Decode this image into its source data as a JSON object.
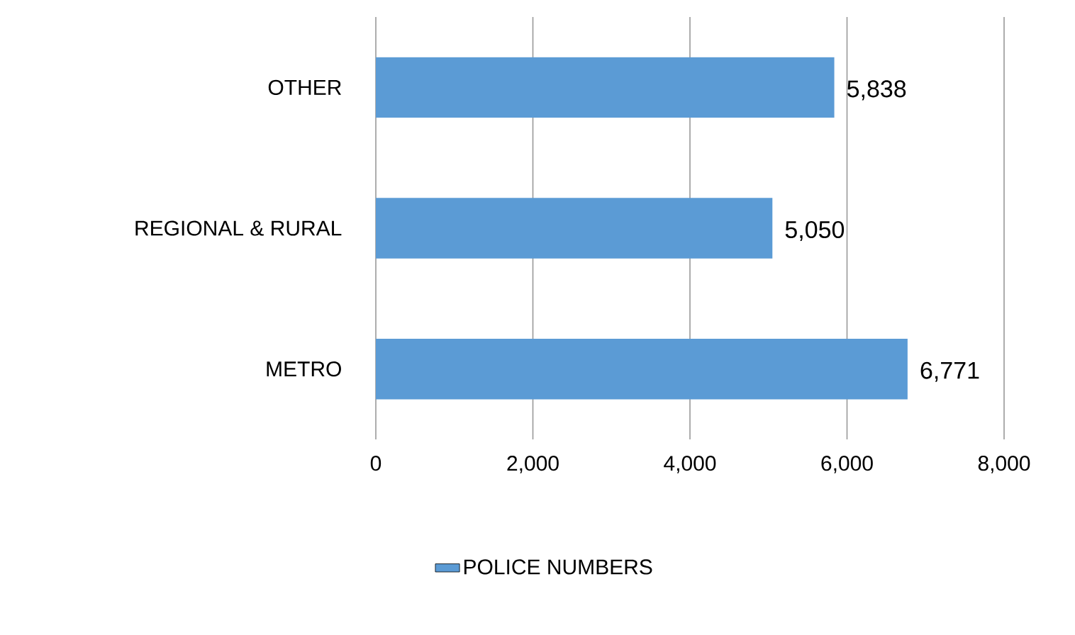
{
  "chart_data": {
    "type": "bar",
    "orientation": "horizontal",
    "categories": [
      "OTHER",
      "REGIONAL & RURAL",
      "METRO"
    ],
    "series": [
      {
        "name": "POLICE NUMBERS",
        "color": "#5b9bd5",
        "values": [
          5838,
          5050,
          6771
        ],
        "value_labels": [
          "5,838",
          "5,050",
          "6,771"
        ]
      }
    ],
    "xlim": [
      0,
      8000
    ],
    "xticks": [
      0,
      {
        "value": 2000,
        "label": "2,000"
      },
      {
        "value": 4000,
        "label": "4,000"
      },
      {
        "value": 6000,
        "label": "6,000"
      },
      {
        "value": 8000,
        "label": "8,000"
      }
    ],
    "grid": "x",
    "legend": "bottom"
  }
}
